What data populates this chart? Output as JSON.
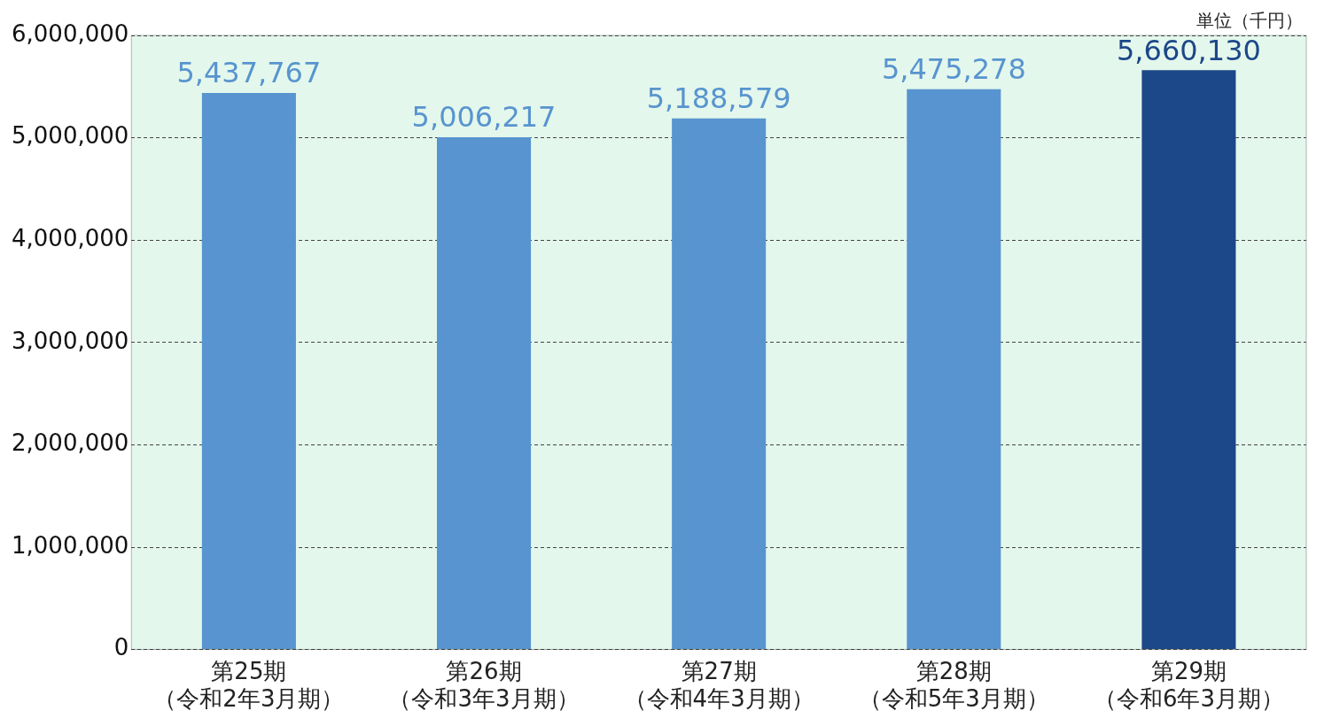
{
  "chart_data": {
    "type": "bar",
    "categories": [
      "第25期（令和2年3月期）",
      "第26期（令和3年3月期）",
      "第27期（令和4年3月期）",
      "第28期（令和5年3月期）",
      "第29期（令和6年3月期）"
    ],
    "values": [
      5437767,
      5006217,
      5188579,
      5475278,
      5660130
    ],
    "value_labels": [
      "5,437,767",
      "5,006,217",
      "5,188,579",
      "5,475,278",
      "5,660,130"
    ],
    "colors": [
      "#5894cf",
      "#5894cf",
      "#5894cf",
      "#5894cf",
      "#1c4788"
    ],
    "ylim": [
      0,
      6000000
    ],
    "yticks": [
      {
        "value": 0,
        "label": "0"
      },
      {
        "value": 1000000,
        "label": "1,000,000"
      },
      {
        "value": 2000000,
        "label": "2,000,000"
      },
      {
        "value": 3000000,
        "label": "3,000,000"
      },
      {
        "value": 4000000,
        "label": "4,000,000"
      },
      {
        "value": 5000000,
        "label": "5,000,000"
      },
      {
        "value": 6000000,
        "label": "6,000,000"
      }
    ],
    "grid": "y",
    "legend": false,
    "annotations": [
      "単位（千円）"
    ]
  }
}
